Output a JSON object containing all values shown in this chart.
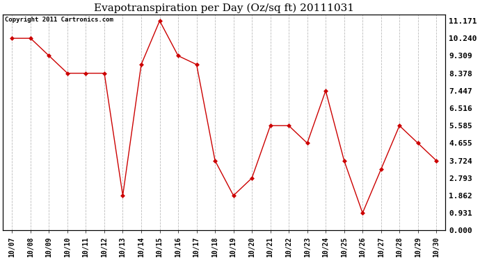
{
  "title": "Evapotranspiration per Day (Oz/sq ft) 20111031",
  "copyright": "Copyright 2011 Cartronics.com",
  "x_labels": [
    "10/07",
    "10/08",
    "10/09",
    "10/10",
    "10/11",
    "10/12",
    "10/13",
    "10/14",
    "10/15",
    "10/16",
    "10/17",
    "10/18",
    "10/19",
    "10/20",
    "10/21",
    "10/22",
    "10/23",
    "10/24",
    "10/25",
    "10/26",
    "10/27",
    "10/28",
    "10/29",
    "10/30"
  ],
  "y_values": [
    10.24,
    10.24,
    9.309,
    8.378,
    8.378,
    8.378,
    1.862,
    8.844,
    11.171,
    9.309,
    8.844,
    3.724,
    1.862,
    2.793,
    5.585,
    5.585,
    4.655,
    7.447,
    3.724,
    0.931,
    3.259,
    5.585,
    4.655,
    3.724
  ],
  "y_ticks": [
    0.0,
    0.931,
    1.862,
    2.793,
    3.724,
    4.655,
    5.585,
    6.516,
    7.447,
    8.378,
    9.309,
    10.24,
    11.171
  ],
  "line_color": "#cc0000",
  "marker_color": "#cc0000",
  "bg_color": "#ffffff",
  "grid_color": "#bbbbbb",
  "ylim": [
    0.0,
    11.5
  ],
  "title_fontsize": 11,
  "copyright_fontsize": 6.5,
  "tick_fontsize": 7,
  "ytick_fontsize": 8
}
